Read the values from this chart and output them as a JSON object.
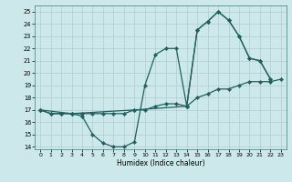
{
  "xlabel": "Humidex (Indice chaleur)",
  "bg_color": "#cce8ea",
  "grid_color": "#b0cccc",
  "line_color": "#206060",
  "xlim": [
    -0.5,
    23.5
  ],
  "ylim": [
    13.8,
    25.5
  ],
  "xticks": [
    0,
    1,
    2,
    3,
    4,
    5,
    6,
    7,
    8,
    9,
    10,
    11,
    12,
    13,
    14,
    15,
    16,
    17,
    18,
    19,
    20,
    21,
    22,
    23
  ],
  "yticks": [
    14,
    15,
    16,
    17,
    18,
    19,
    20,
    21,
    22,
    23,
    24,
    25
  ],
  "line1_x": [
    0,
    1,
    2,
    3,
    4,
    5,
    6,
    7,
    8,
    9,
    10,
    11,
    12,
    13,
    14,
    15,
    16,
    17,
    18,
    19,
    20,
    21,
    22
  ],
  "line1_y": [
    17.0,
    16.7,
    16.7,
    16.7,
    16.5,
    15.0,
    14.3,
    14.0,
    14.0,
    14.4,
    19.0,
    21.5,
    22.0,
    22.0,
    17.3,
    23.5,
    24.2,
    25.0,
    24.3,
    23.0,
    21.2,
    21.0,
    19.5
  ],
  "line2_x": [
    0,
    1,
    2,
    3,
    4,
    5,
    6,
    7,
    8,
    9,
    10,
    11,
    12,
    13,
    14,
    15,
    16,
    17,
    18,
    19,
    20,
    21,
    22,
    23
  ],
  "line2_y": [
    17.0,
    16.7,
    16.7,
    16.7,
    16.7,
    16.7,
    16.7,
    16.7,
    16.7,
    17.0,
    17.0,
    17.3,
    17.5,
    17.5,
    17.3,
    18.0,
    18.3,
    18.7,
    18.7,
    19.0,
    19.3,
    19.3,
    19.3,
    19.5
  ],
  "line3_x": [
    0,
    3,
    9,
    14,
    15,
    16,
    17,
    18,
    19,
    20,
    21,
    22
  ],
  "line3_y": [
    17.0,
    16.7,
    17.0,
    17.3,
    23.5,
    24.2,
    25.0,
    24.3,
    23.0,
    21.2,
    21.0,
    19.5
  ]
}
